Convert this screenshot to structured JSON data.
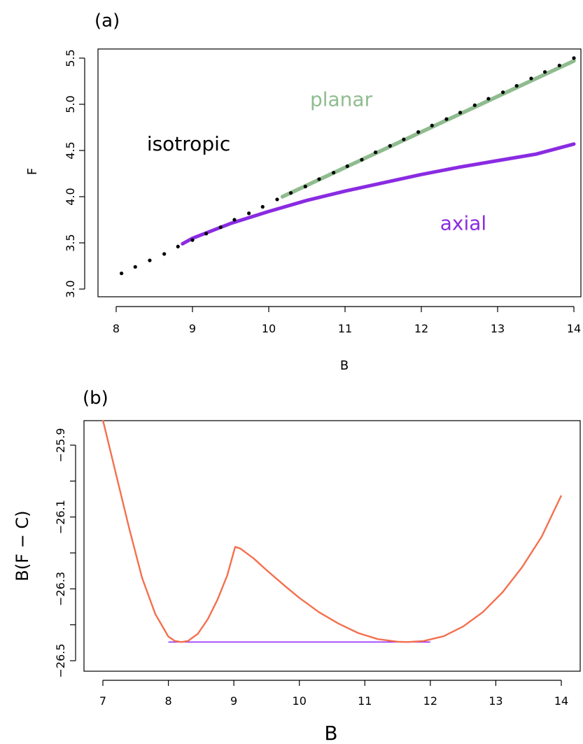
{
  "chart_data": [
    {
      "type": "line",
      "panel_label": "(a)",
      "xlabel": "B",
      "ylabel": "F",
      "xlim": [
        7.8,
        14.1
      ],
      "ylim": [
        2.95,
        5.55
      ],
      "x_ticks": [
        "8",
        "9",
        "10",
        "11",
        "12",
        "13",
        "14"
      ],
      "y_ticks": [
        "3.0",
        "3.5",
        "4.0",
        "4.5",
        "5.0",
        "5.5"
      ],
      "grid": false,
      "annotations": [
        {
          "text": "isotropic",
          "x": 8.95,
          "y": 4.5,
          "color": "#000000"
        },
        {
          "text": "planar",
          "x": 10.95,
          "y": 4.98,
          "color": "#8fbc8f"
        },
        {
          "text": "axial",
          "x": 12.55,
          "y": 3.64,
          "color": "#8a2be2"
        }
      ],
      "series": [
        {
          "label": "isotropic",
          "style": "dotted",
          "color": "#000000",
          "x": [
            8.07,
            8.25,
            8.44,
            8.63,
            8.81,
            9.0,
            9.18,
            9.37,
            9.55,
            9.74,
            9.92,
            10.11,
            10.29,
            10.48,
            10.66,
            10.85,
            11.03,
            11.22,
            11.4,
            11.59,
            11.77,
            11.96,
            12.14,
            12.33,
            12.51,
            12.7,
            12.88,
            13.07,
            13.25,
            13.44,
            13.62,
            13.81,
            14.0
          ],
          "y": [
            3.17,
            3.24,
            3.31,
            3.38,
            3.46,
            3.53,
            3.6,
            3.67,
            3.75,
            3.82,
            3.89,
            3.97,
            4.04,
            4.11,
            4.19,
            4.26,
            4.33,
            4.4,
            4.48,
            4.55,
            4.62,
            4.7,
            4.77,
            4.84,
            4.91,
            4.99,
            5.06,
            5.13,
            5.2,
            5.28,
            5.35,
            5.42,
            5.5
          ]
        },
        {
          "label": "planar",
          "style": "solid",
          "color": "#8fbc8f",
          "x": [
            10.18,
            14.0
          ],
          "y": [
            4.0,
            5.47
          ]
        },
        {
          "label": "axial",
          "style": "solid",
          "color": "#8a2be2",
          "x": [
            8.87,
            9.0,
            9.5,
            10.0,
            10.5,
            11.0,
            11.5,
            12.0,
            12.5,
            13.0,
            13.5,
            14.0
          ],
          "y": [
            3.49,
            3.55,
            3.71,
            3.84,
            3.96,
            4.06,
            4.15,
            4.24,
            4.32,
            4.39,
            4.46,
            4.57
          ]
        }
      ]
    },
    {
      "type": "line",
      "panel_label": "(b)",
      "xlabel": "B",
      "ylabel": "B(F − C)",
      "xlim": [
        6.7,
        14.3
      ],
      "ylim": [
        -26.53,
        -25.81
      ],
      "x_ticks": [
        "7",
        "8",
        "9",
        "10",
        "11",
        "12",
        "13",
        "14"
      ],
      "y_ticks": [
        "−26.5",
        "−26.3",
        "−26.1",
        "−25.9"
      ],
      "y_tick_values": [
        -26.5,
        -26.3,
        -26.1,
        -25.9
      ],
      "grid": false,
      "series": [
        {
          "label": "curve",
          "style": "solid",
          "color": "#f4704e",
          "x": [
            7.0,
            7.2,
            7.4,
            7.6,
            7.8,
            8.0,
            8.1,
            8.2,
            8.3,
            8.45,
            8.6,
            8.75,
            8.9,
            9.02,
            9.1,
            9.3,
            9.5,
            9.8,
            10.0,
            10.3,
            10.6,
            10.9,
            11.2,
            11.5,
            11.65,
            11.9,
            12.2,
            12.5,
            12.8,
            13.1,
            13.4,
            13.7,
            14.0
          ],
          "y": [
            -25.83,
            -25.98,
            -26.13,
            -26.27,
            -26.37,
            -26.433,
            -26.445,
            -26.448,
            -26.445,
            -26.425,
            -26.385,
            -26.33,
            -26.262,
            -26.183,
            -26.188,
            -26.215,
            -26.248,
            -26.295,
            -26.325,
            -26.365,
            -26.397,
            -26.423,
            -26.44,
            -26.447,
            -26.448,
            -26.445,
            -26.432,
            -26.405,
            -26.365,
            -26.31,
            -26.24,
            -26.155,
            -26.04
          ]
        },
        {
          "label": "tangent",
          "style": "solid",
          "color": "#9b30ff",
          "x": [
            8.0,
            12.0
          ],
          "y": [
            -26.448,
            -26.448
          ]
        }
      ]
    }
  ]
}
